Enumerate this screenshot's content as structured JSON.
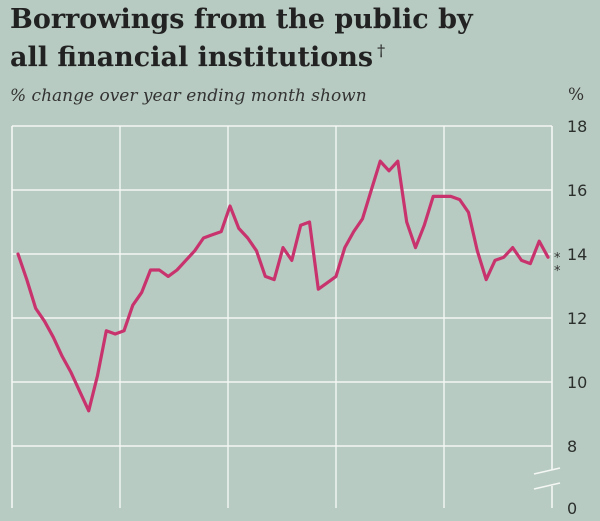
{
  "title_line1": "Borrowings from the public by",
  "title_line2": "all financial institutions",
  "title_mark": "†",
  "subtitle": "% change over year ending month shown",
  "unit": "%",
  "chart_data": {
    "type": "line",
    "title": "Borrowings from the public by all financial institutions",
    "ylabel": "% change over year ending month shown",
    "ylim": [
      8,
      18
    ],
    "yticks": [
      8,
      10,
      12,
      14,
      16,
      18
    ],
    "broken_axis_zero_label": "0",
    "grid": true,
    "x_divisions": 5,
    "series": [
      {
        "name": "Borrowings",
        "color": "#c8336e",
        "values": [
          14.0,
          13.2,
          12.3,
          11.9,
          11.4,
          10.8,
          10.3,
          9.7,
          9.1,
          10.2,
          11.6,
          11.5,
          11.6,
          12.4,
          12.8,
          13.5,
          13.5,
          13.3,
          13.5,
          13.8,
          14.1,
          14.5,
          14.6,
          14.7,
          15.5,
          14.8,
          14.5,
          14.1,
          13.3,
          13.2,
          14.2,
          13.8,
          14.9,
          15.0,
          12.9,
          13.1,
          13.3,
          14.2,
          14.7,
          15.1,
          16.0,
          16.9,
          16.6,
          16.9,
          15.0,
          14.2,
          14.9,
          15.8,
          15.8,
          15.8,
          15.7,
          15.3,
          14.1,
          13.2,
          13.8,
          13.9,
          14.2,
          13.8,
          13.7,
          14.4,
          13.9
        ]
      }
    ],
    "annotations": [
      "**"
    ]
  }
}
